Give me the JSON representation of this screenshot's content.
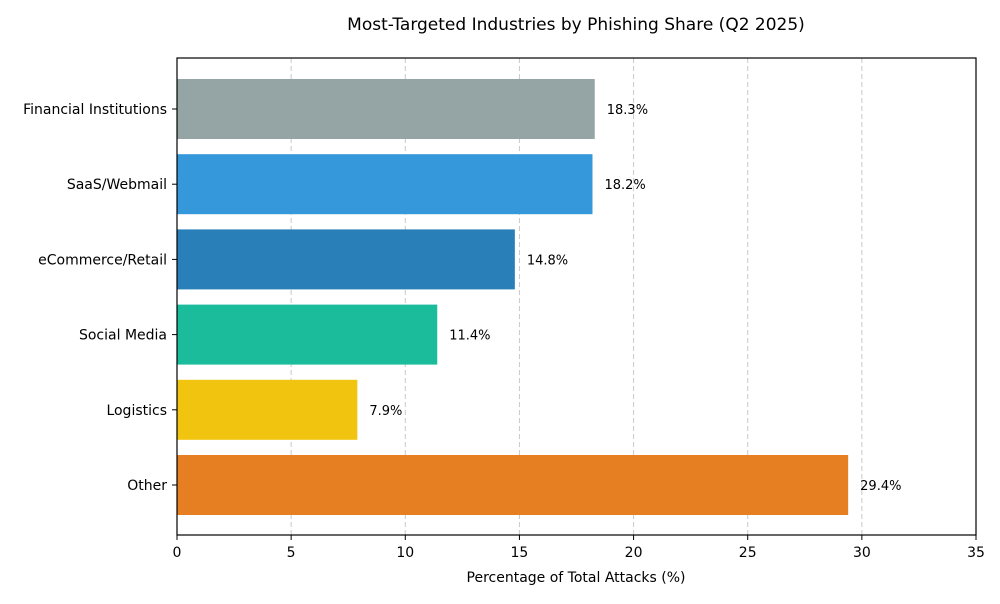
{
  "chart_data": {
    "type": "bar",
    "orientation": "horizontal",
    "title": "Most-Targeted Industries by Phishing Share (Q2 2025)",
    "xlabel": "Percentage of Total Attacks (%)",
    "ylabel": "",
    "xlim": [
      0,
      35
    ],
    "xticks": [
      "0",
      "5",
      "10",
      "15",
      "20",
      "25",
      "30",
      "35"
    ],
    "grid": "x, dashed",
    "categories": [
      "Financial Institutions",
      "SaaS/Webmail",
      "eCommerce/Retail",
      "Social Media",
      "Logistics",
      "Other"
    ],
    "values": [
      18.3,
      18.2,
      14.8,
      11.4,
      7.9,
      29.4
    ],
    "data_labels": [
      "18.3%",
      "18.2%",
      "14.8%",
      "11.4%",
      "7.9%",
      "29.4%"
    ],
    "colors": [
      "#95a5a6",
      "#3498db",
      "#2980b9",
      "#1abc9c",
      "#f1c40f",
      "#e67e22"
    ]
  }
}
